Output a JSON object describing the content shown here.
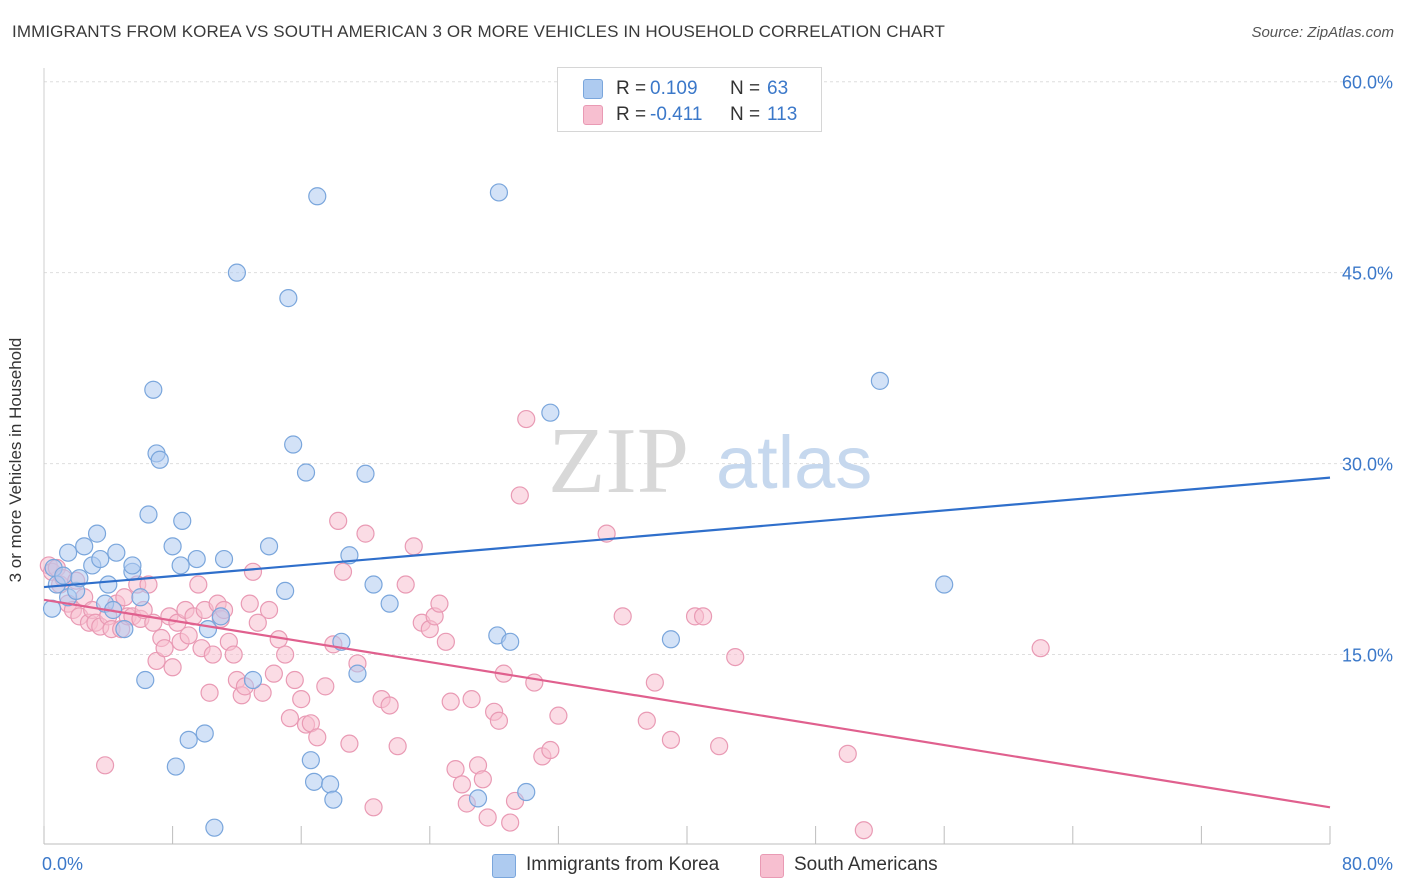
{
  "title": "IMMIGRANTS FROM KOREA VS SOUTH AMERICAN 3 OR MORE VEHICLES IN HOUSEHOLD CORRELATION CHART",
  "source": "Source: ZipAtlas.com",
  "watermark": {
    "zip": "ZIP",
    "atlas": "atlas"
  },
  "legend": {
    "series": [
      {
        "r_label": "R =",
        "r_value": "0.109",
        "n_label": "N =",
        "n_value": "63"
      },
      {
        "r_label": "R =",
        "r_value": "-0.411",
        "n_label": "N =",
        "n_value": "113"
      }
    ]
  },
  "colors": {
    "korea_fill": "#aecbf0",
    "korea_stroke": "#7aa6dc",
    "korea_line": "#2f6fcb",
    "south_fill": "#f7bfd0",
    "south_stroke": "#e99ab4",
    "south_line": "#e0608e",
    "axis_text": "#3b78c9",
    "grid": "#dedede"
  },
  "chart_data": {
    "type": "scatter",
    "title": "IMMIGRANTS FROM KOREA VS SOUTH AMERICAN 3 OR MORE VEHICLES IN HOUSEHOLD CORRELATION CHART",
    "xlabel": "",
    "ylabel": "3 or more Vehicles in Household",
    "xlim": [
      0,
      80
    ],
    "ylim": [
      0,
      62
    ],
    "x_tick_labels": [
      "0.0%",
      "80.0%"
    ],
    "y_ticks": [
      15,
      30,
      45,
      60
    ],
    "y_tick_labels": [
      "15.0%",
      "30.0%",
      "45.0%",
      "60.0%"
    ],
    "grid": true,
    "legend_position": "bottom-center",
    "series": [
      {
        "name": "Immigrants from Korea",
        "trend": {
          "x": [
            0,
            80
          ],
          "y": [
            20.3,
            28.9
          ]
        },
        "points": [
          [
            0.5,
            18.6
          ],
          [
            0.6,
            21.8
          ],
          [
            0.8,
            20.5
          ],
          [
            1.2,
            21.2
          ],
          [
            1.5,
            19.5
          ],
          [
            1.5,
            23.0
          ],
          [
            2.0,
            20.0
          ],
          [
            2.2,
            21.0
          ],
          [
            2.5,
            23.5
          ],
          [
            3.0,
            22.0
          ],
          [
            3.3,
            24.5
          ],
          [
            3.5,
            22.5
          ],
          [
            3.8,
            19.0
          ],
          [
            4.0,
            20.5
          ],
          [
            4.3,
            18.5
          ],
          [
            4.5,
            23.0
          ],
          [
            5.0,
            17.0
          ],
          [
            5.5,
            21.5
          ],
          [
            5.5,
            22.0
          ],
          [
            6.0,
            19.5
          ],
          [
            6.3,
            13.0
          ],
          [
            6.5,
            26.0
          ],
          [
            6.8,
            35.8
          ],
          [
            7.0,
            30.8
          ],
          [
            7.2,
            30.3
          ],
          [
            8.0,
            23.5
          ],
          [
            8.2,
            6.2
          ],
          [
            8.5,
            22.0
          ],
          [
            8.6,
            25.5
          ],
          [
            9.0,
            8.3
          ],
          [
            9.5,
            22.5
          ],
          [
            10.0,
            8.8
          ],
          [
            10.2,
            17.0
          ],
          [
            10.6,
            1.4
          ],
          [
            11.0,
            18.0
          ],
          [
            11.2,
            22.5
          ],
          [
            12.0,
            45.0
          ],
          [
            13.0,
            13.0
          ],
          [
            14.0,
            23.5
          ],
          [
            15.0,
            20.0
          ],
          [
            15.2,
            43.0
          ],
          [
            15.5,
            31.5
          ],
          [
            16.3,
            29.3
          ],
          [
            16.6,
            6.7
          ],
          [
            16.8,
            5.0
          ],
          [
            17.0,
            51.0
          ],
          [
            17.8,
            4.8
          ],
          [
            18.0,
            3.6
          ],
          [
            18.5,
            16.0
          ],
          [
            19.0,
            22.8
          ],
          [
            19.5,
            13.5
          ],
          [
            20.0,
            29.2
          ],
          [
            20.5,
            20.5
          ],
          [
            21.5,
            19.0
          ],
          [
            27.0,
            3.7
          ],
          [
            28.2,
            16.5
          ],
          [
            28.3,
            51.3
          ],
          [
            29.0,
            16.0
          ],
          [
            30.0,
            4.2
          ],
          [
            31.5,
            34.0
          ],
          [
            39.0,
            16.2
          ],
          [
            52.0,
            36.5
          ],
          [
            56.0,
            20.5
          ]
        ]
      },
      {
        "name": "South Americans",
        "trend": {
          "x": [
            0,
            80
          ],
          "y": [
            19.3,
            3.0
          ]
        },
        "points": [
          [
            0.3,
            22.0
          ],
          [
            0.5,
            21.5
          ],
          [
            0.8,
            21.8
          ],
          [
            1.0,
            20.5
          ],
          [
            1.2,
            21.0
          ],
          [
            1.5,
            19.0
          ],
          [
            1.8,
            18.5
          ],
          [
            2.0,
            20.8
          ],
          [
            2.2,
            18.0
          ],
          [
            2.5,
            19.5
          ],
          [
            2.8,
            17.5
          ],
          [
            3.0,
            18.5
          ],
          [
            3.2,
            17.5
          ],
          [
            3.5,
            17.2
          ],
          [
            3.8,
            6.3
          ],
          [
            4.0,
            18.0
          ],
          [
            4.2,
            17.0
          ],
          [
            4.5,
            19.0
          ],
          [
            4.8,
            17.0
          ],
          [
            5.0,
            19.5
          ],
          [
            5.2,
            18.0
          ],
          [
            5.5,
            18.0
          ],
          [
            5.8,
            20.5
          ],
          [
            6.0,
            17.8
          ],
          [
            6.2,
            18.5
          ],
          [
            6.5,
            20.5
          ],
          [
            6.8,
            17.5
          ],
          [
            7.0,
            14.5
          ],
          [
            7.3,
            16.3
          ],
          [
            7.5,
            15.5
          ],
          [
            7.8,
            18.0
          ],
          [
            8.0,
            14.0
          ],
          [
            8.3,
            17.5
          ],
          [
            8.5,
            16.0
          ],
          [
            8.8,
            18.5
          ],
          [
            9.0,
            16.5
          ],
          [
            9.3,
            18.0
          ],
          [
            9.6,
            20.5
          ],
          [
            9.8,
            15.5
          ],
          [
            10.0,
            18.5
          ],
          [
            10.3,
            12.0
          ],
          [
            10.5,
            15.0
          ],
          [
            10.8,
            19.0
          ],
          [
            11.0,
            17.8
          ],
          [
            11.2,
            18.5
          ],
          [
            11.5,
            16.0
          ],
          [
            11.8,
            15.0
          ],
          [
            12.0,
            13.0
          ],
          [
            12.3,
            11.8
          ],
          [
            12.5,
            12.5
          ],
          [
            12.8,
            19.0
          ],
          [
            13.0,
            21.5
          ],
          [
            13.3,
            17.5
          ],
          [
            13.6,
            12.0
          ],
          [
            14.0,
            18.5
          ],
          [
            14.3,
            13.5
          ],
          [
            14.6,
            16.2
          ],
          [
            15.0,
            15.0
          ],
          [
            15.3,
            10.0
          ],
          [
            15.6,
            13.0
          ],
          [
            16.0,
            11.5
          ],
          [
            16.3,
            9.5
          ],
          [
            16.6,
            9.6
          ],
          [
            17.0,
            8.5
          ],
          [
            17.5,
            12.5
          ],
          [
            18.0,
            15.8
          ],
          [
            18.3,
            25.5
          ],
          [
            18.6,
            21.5
          ],
          [
            19.0,
            8.0
          ],
          [
            19.5,
            14.3
          ],
          [
            20.0,
            24.5
          ],
          [
            20.5,
            3.0
          ],
          [
            21.0,
            11.5
          ],
          [
            21.5,
            11.0
          ],
          [
            22.0,
            7.8
          ],
          [
            22.5,
            20.5
          ],
          [
            23.0,
            23.5
          ],
          [
            23.5,
            17.5
          ],
          [
            24.0,
            17.0
          ],
          [
            24.3,
            18.0
          ],
          [
            24.6,
            19.0
          ],
          [
            25.0,
            16.0
          ],
          [
            25.3,
            11.3
          ],
          [
            25.6,
            6.0
          ],
          [
            26.0,
            4.8
          ],
          [
            26.3,
            3.3
          ],
          [
            26.6,
            11.5
          ],
          [
            27.0,
            6.3
          ],
          [
            27.3,
            5.2
          ],
          [
            27.6,
            2.2
          ],
          [
            28.0,
            10.5
          ],
          [
            28.3,
            9.8
          ],
          [
            28.6,
            13.5
          ],
          [
            29.0,
            1.8
          ],
          [
            29.3,
            3.5
          ],
          [
            29.6,
            27.5
          ],
          [
            30.0,
            33.5
          ],
          [
            30.5,
            12.8
          ],
          [
            31.0,
            7.0
          ],
          [
            31.5,
            7.5
          ],
          [
            32.0,
            10.2
          ],
          [
            35.0,
            24.5
          ],
          [
            36.0,
            18.0
          ],
          [
            37.5,
            9.8
          ],
          [
            38.0,
            12.8
          ],
          [
            39.0,
            8.3
          ],
          [
            40.5,
            18.0
          ],
          [
            41.0,
            18.0
          ],
          [
            42.0,
            7.8
          ],
          [
            43.0,
            14.8
          ],
          [
            50.0,
            7.2
          ],
          [
            51.0,
            1.2
          ],
          [
            62.0,
            15.5
          ]
        ]
      }
    ]
  }
}
